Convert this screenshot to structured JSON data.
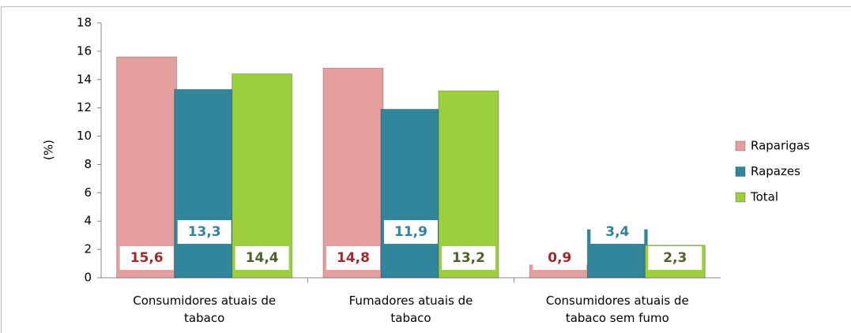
{
  "chart_data": {
    "type": "bar",
    "ylabel": "(%)",
    "categories": [
      "Consumidores atuais de tabaco",
      "Fumadores atuais de tabaco",
      "Consumidores atuais de tabaco sem fumo"
    ],
    "series": [
      {
        "name": "Raparigas",
        "color": "#e69f9f",
        "label_color": "#a3282b",
        "values": [
          15.6,
          14.8,
          0.9
        ],
        "value_labels": [
          "15,6",
          "14,8",
          "0,9"
        ]
      },
      {
        "name": "Rapazes",
        "color": "#31869b",
        "label_color": "#31849b",
        "values": [
          13.3,
          11.9,
          3.4
        ],
        "value_labels": [
          "13,3",
          "11,9",
          "3,4"
        ]
      },
      {
        "name": "Total",
        "color": "#9bcf3b",
        "label_color": "#4f6228",
        "values": [
          14.4,
          13.2,
          2.3
        ],
        "value_labels": [
          "14,4",
          "13,2",
          "2,3"
        ]
      }
    ],
    "ylim": [
      0,
      18
    ],
    "yticks": [
      0,
      2,
      4,
      6,
      8,
      10,
      12,
      14,
      16,
      18
    ],
    "legend": "right",
    "grid": false
  }
}
